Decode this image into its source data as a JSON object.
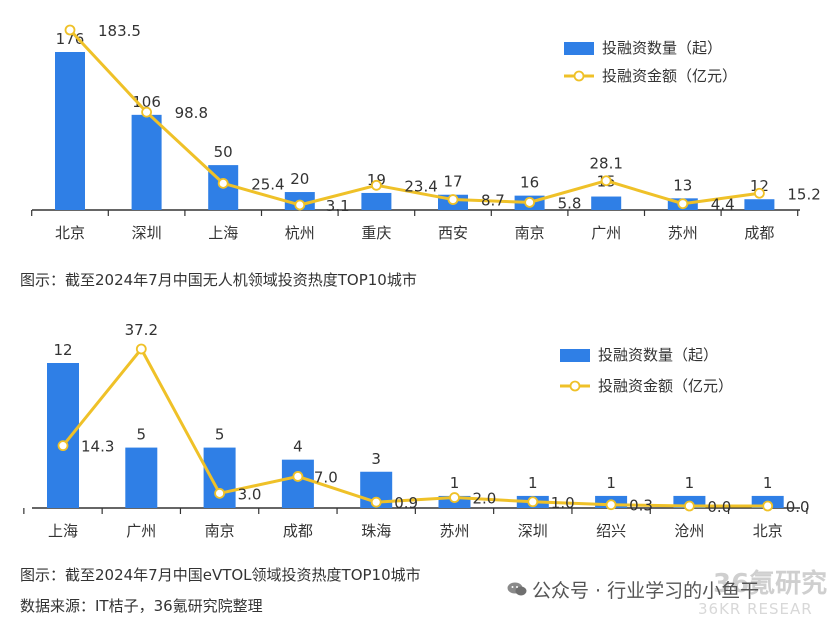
{
  "colors": {
    "bar": "#2f7fe6",
    "line": "#efc128",
    "axis": "#333333"
  },
  "chart_data": [
    {
      "type": "bar+line",
      "title": "图示：截至2024年7月中国无人机领域投资热度TOP10城市",
      "categories": [
        "北京",
        "深圳",
        "上海",
        "杭州",
        "重庆",
        "西安",
        "南京",
        "广州",
        "苏州",
        "成都"
      ],
      "series": [
        {
          "name": "投融资数量（起）",
          "type": "bar",
          "values": [
            176,
            106,
            50,
            20,
            19,
            17,
            16,
            15,
            13,
            12
          ]
        },
        {
          "name": "投融资金额（亿元）",
          "type": "line",
          "values": [
            183.5,
            98.8,
            25.4,
            3.1,
            23.4,
            8.7,
            5.8,
            28.1,
            4.4,
            15.2
          ]
        }
      ],
      "bar_labels": [
        "176",
        "106",
        "50",
        "20",
        "19",
        "17",
        "16",
        "15",
        "13",
        "12"
      ],
      "line_labels": [
        "183.5",
        "98.8",
        "25.4",
        "3.1",
        "23.4",
        "8.7",
        "5.8",
        "28.1",
        "4.4",
        "15.2"
      ],
      "legend": [
        "投融资数量（起）",
        "投融资金额（亿元）"
      ],
      "legend_position": "top-right"
    },
    {
      "type": "bar+line",
      "title": "图示：截至2024年7月中国eVTOL领域投资热度TOP10城市",
      "categories": [
        "上海",
        "广州",
        "南京",
        "成都",
        "珠海",
        "苏州",
        "深圳",
        "绍兴",
        "沧州",
        "北京"
      ],
      "series": [
        {
          "name": "投融资数量（起）",
          "type": "bar",
          "values": [
            12,
            5,
            5,
            4,
            3,
            1,
            1,
            1,
            1,
            1
          ]
        },
        {
          "name": "投融资金额（亿元）",
          "type": "line",
          "values": [
            14.3,
            37.2,
            3.0,
            7.0,
            0.9,
            2.0,
            1.0,
            0.3,
            0.0,
            0.0
          ]
        }
      ],
      "bar_labels": [
        "12",
        "5",
        "5",
        "4",
        "3",
        "1",
        "1",
        "1",
        "1",
        "1"
      ],
      "line_labels": [
        "14.3",
        "37.2",
        "3.0",
        "7.0",
        "0.9",
        "2.0",
        "1.0",
        "0.3",
        "0.0",
        "0.0"
      ],
      "legend": [
        "投融资数量（起）",
        "投融资金额（亿元）"
      ],
      "legend_position": "top-right"
    }
  ],
  "captions": {
    "chart1": "图示：截至2024年7月中国无人机领域投资热度TOP10城市",
    "chart2": "图示：截至2024年7月中国eVTOL领域投资热度TOP10城市",
    "source": "数据来源：IT桔子，36氪研究院整理"
  },
  "watermark": {
    "text": "公众号 · 行业学习的小鱼干",
    "ghost_main": "36氪研究",
    "ghost_sub": "36KR RESEAR"
  }
}
